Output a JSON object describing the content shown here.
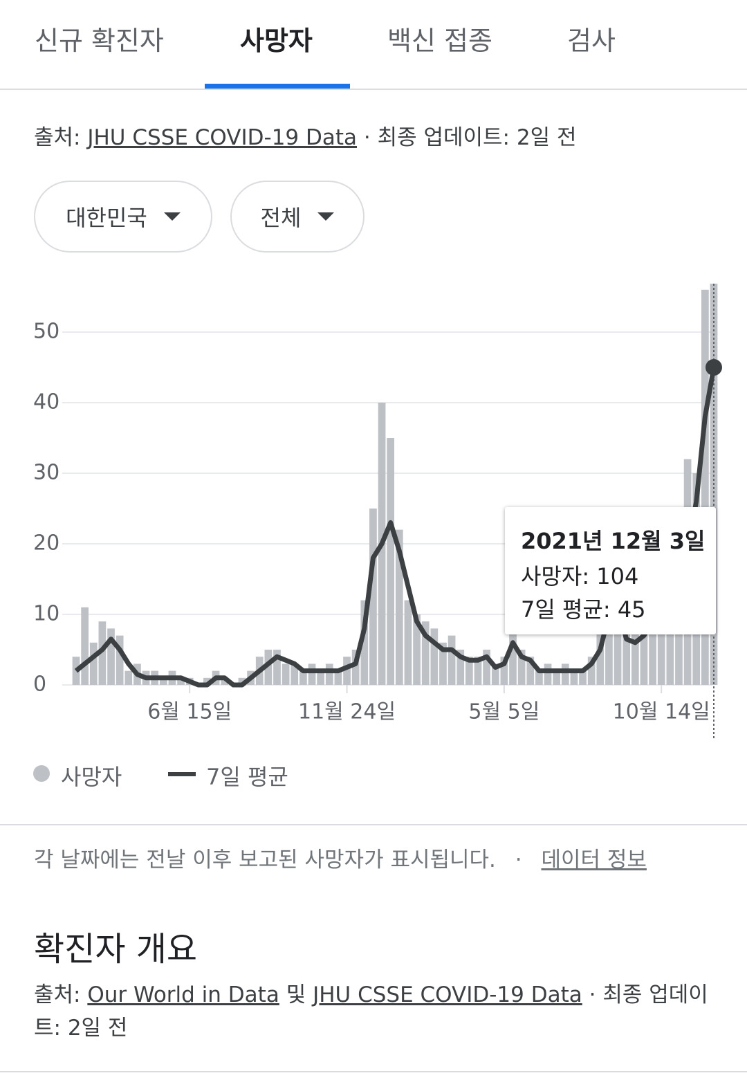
{
  "tabs": [
    "신규 확진자",
    "사망자",
    "백신 접종",
    "검사"
  ],
  "source": {
    "prefix": "출처:",
    "link": "JHU CSSE COVID-19 Data",
    "suffix": "· 최종 업데이트: 2일 전"
  },
  "filters": [
    "대한민국",
    "전체"
  ],
  "chart_data": {
    "type": "bar_line",
    "categories": [
      null,
      null,
      null,
      null,
      null,
      null,
      null,
      null,
      null,
      null,
      null,
      null,
      null,
      "6월 15일",
      null,
      null,
      null,
      null,
      null,
      null,
      null,
      null,
      null,
      null,
      null,
      null,
      null,
      null,
      null,
      null,
      null,
      "11월 24일",
      null,
      null,
      null,
      null,
      null,
      null,
      null,
      null,
      null,
      null,
      null,
      null,
      null,
      null,
      null,
      null,
      null,
      "5월 5일",
      null,
      null,
      null,
      null,
      null,
      null,
      null,
      null,
      null,
      null,
      null,
      null,
      null,
      null,
      null,
      null,
      null,
      "10월 14일",
      null,
      null,
      null,
      null,
      null,
      null
    ],
    "series": [
      {
        "name": "사망자",
        "color": "#bdc1c6",
        "values": [
          4,
          11,
          6,
          9,
          8,
          7,
          2,
          3,
          2,
          2,
          1,
          2,
          1,
          1,
          0,
          1,
          2,
          1,
          0,
          1,
          2,
          4,
          5,
          5,
          3,
          3,
          2,
          3,
          2,
          3,
          2,
          4,
          5,
          12,
          25,
          40,
          35,
          22,
          12,
          10,
          9,
          8,
          6,
          7,
          5,
          4,
          4,
          5,
          3,
          4,
          8,
          5,
          4,
          2,
          3,
          2,
          3,
          2,
          2,
          4,
          8,
          17,
          14,
          8,
          8,
          11,
          12,
          15,
          17,
          20,
          32,
          30,
          56,
          104
        ]
      },
      {
        "name": "7일 평균",
        "color": "#3c4043",
        "values": [
          2,
          3,
          4,
          5,
          6.5,
          5,
          3,
          1.5,
          1,
          1,
          1,
          1,
          1,
          0.5,
          0,
          0,
          1,
          1,
          0,
          0,
          1,
          2,
          3,
          4,
          3.5,
          3,
          2,
          2,
          2,
          2,
          2,
          2.5,
          3,
          8,
          18,
          20,
          23,
          19,
          14,
          9,
          7,
          6,
          5,
          5,
          4,
          3.5,
          3.5,
          4,
          2.5,
          3,
          6,
          4,
          3.5,
          2,
          2,
          2,
          2,
          2,
          2,
          3,
          5,
          10,
          11,
          6.5,
          6,
          7,
          9,
          12,
          14,
          16,
          19,
          26,
          38,
          45
        ]
      }
    ],
    "ylim": [
      0,
      57
    ],
    "yticks": [
      0,
      10,
      20,
      30,
      40,
      50
    ],
    "grid": true
  },
  "tooltip": {
    "date": "2021년 12월 3일",
    "rows": [
      {
        "label": "사망자:",
        "value": 104
      },
      {
        "label": "7일 평균:",
        "value": 45
      }
    ]
  },
  "note": {
    "text": "각 날짜에는 전날 이후 보고된 사망자가 표시됩니다.",
    "sep": "·",
    "link": "데이터 정보"
  },
  "section": {
    "title": "확진자 개요",
    "prefix": "출처:",
    "link1": "Our World in Data",
    "and": "및",
    "link2": "JHU CSSE COVID-19 Data",
    "suffix": "· 최종 업데이트: 2일 전"
  }
}
